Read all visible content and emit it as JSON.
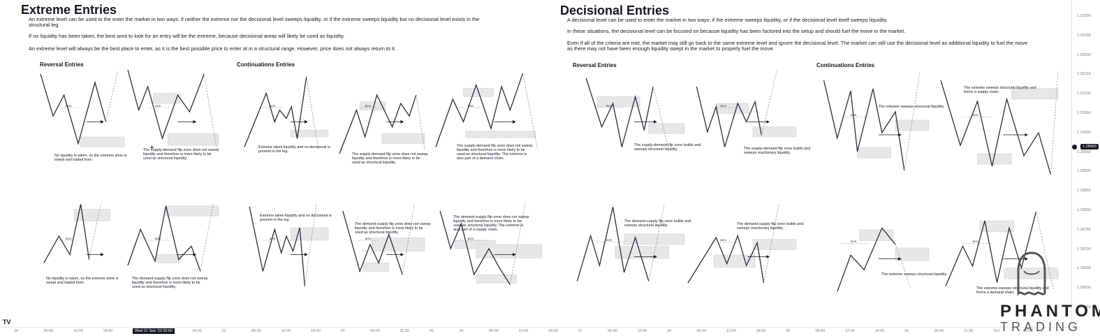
{
  "extreme": {
    "title": "Extreme Entries",
    "paragraphs": [
      "An extreme level can be used to the enter the market in two ways: if neither the extreme nor the decisional level sweeps liquidity, or if the extreme sweeps liquidity but no decisional level exists in the structural leg.",
      "If no liquidity has been taken, the best area to look for an entry will be the extreme, because decisional areas will likely be used as liquidity.",
      "An extreme level will always be the best place to enter, as it is the best possible price to enter at in a structural range. However, price does not always return to it."
    ],
    "reversal_label": "Reversal Entries",
    "continuation_label": "Continuations Entries"
  },
  "decisional": {
    "title": "Decisional Entries",
    "paragraphs": [
      "A decisional level can be used to enter the market in two ways: if the extreme sweeps liquidity, or if the decisional level itself sweeps liquidity.",
      "In these situations, the decisional level can be focused on because liquidity has been factored into the setup and should fuel the move in the market.",
      "Even if all of the criteria are met, the market may still go back to the same extreme level and ignore the decisional level. The market can still use the decisional level as additional liquidity to fuel the move as there may not have been enough liquidity swept in the market to properly fuel the move."
    ],
    "reversal_label": "Reversal Entries",
    "continuation_label": "Continuations Entries"
  },
  "diagrams": [
    {
      "caption": "No liquidity is taken, so the extreme zone is swept and traded from."
    },
    {
      "caption": "The supply-demand flip zone does not sweep liquidity and therefore is more likely to be used as structural liquidity."
    },
    {
      "caption": "Extreme takes liquidity and no decisional is present in the leg."
    },
    {
      "caption": "The supply-demand flip zone does not sweep liquidity and therefore is more likely to be used as structural liquidity."
    },
    {
      "caption": "The supply-demand flip zone does not sweep liquidity and therefore is more likely to be used as structural liquidity. The extreme is also part of a demand chain."
    },
    {
      "caption": "No liquidity is taken, so the extreme zone is swept and traded from."
    },
    {
      "caption": "The demand-supply flip zone does not sweep liquidity and therefore is more likely to be used as structural liquidity."
    },
    {
      "caption": "Extreme takes liquidity and no decisional is present in the leg."
    },
    {
      "caption": "The demand-supply flip zone does not sweep liquidity and therefore is more likely to be used as structural liquidity."
    },
    {
      "caption": "The demand-supply flip zone does not sweep liquidity and therefore is more likely to be used as structural liquidity. The extreme is also part of a supply chain."
    },
    {
      "caption": "The supply-demand flip zone builds and sweeps structural liquidity."
    },
    {
      "caption": "The supply-demand flip zone builds and sweeps reactionary liquidity."
    },
    {
      "caption": "The extreme sweeps structural liquidity."
    },
    {
      "caption": "The extreme sweeps structural liquidity and forms a supply chain."
    },
    {
      "caption": "The demand-supply flip zone builds and sweeps structural liquidity."
    },
    {
      "caption": "The demand-supply flip zone builds and sweeps reactionary liquidity."
    },
    {
      "caption": "The extreme sweeps structural liquidity."
    },
    {
      "caption": "The extreme sweeps structural liquidity and forms a demand chain."
    }
  ],
  "bos_label": "BOS",
  "price_axis": {
    "labels": [
      "1.29300",
      "1.29250",
      "1.29200",
      "1.29150",
      "1.29100",
      "1.29050",
      "1.29000",
      "1.28950",
      "1.28900",
      "1.28850",
      "1.28800",
      "1.28750",
      "1.28700",
      "1.28650",
      "1.28600",
      "1.28550"
    ],
    "current_price": "1.28963"
  },
  "time_axis": {
    "labels": [
      "20",
      "06:00",
      "12:00",
      "18:00",
      "21",
      "12:00",
      "18:00",
      "22",
      "06:00",
      "12:00",
      "18:00",
      "23",
      "06:00",
      "11:30",
      "25",
      "26",
      "06:00",
      "12:00",
      "18:00",
      "27",
      "06:00",
      "12:00",
      "28",
      "06:00",
      "12:00",
      "18:00",
      "29",
      "06:00",
      "12:00",
      "18:00",
      "30",
      "06:00",
      "11:30",
      "Oct",
      "06:00"
    ],
    "current_date": "Wed 21 Sep '22",
    "current_time": "05:00"
  },
  "logo": {
    "tv": "TV",
    "brand": "PHANTOM",
    "brand_sub": "TRADING"
  },
  "colors": {
    "line": "#2a2e39",
    "zone": "#e7e7e7",
    "dashed": "#787b86",
    "arrow": "#131722"
  }
}
